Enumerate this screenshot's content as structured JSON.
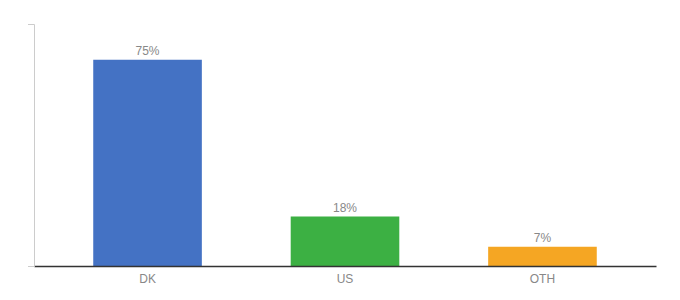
{
  "chart_data": {
    "type": "bar",
    "categories": [
      "DK",
      "US",
      "OTH"
    ],
    "values": [
      75,
      18,
      7
    ],
    "value_labels": [
      "75%",
      "18%",
      "7%"
    ],
    "colors": [
      "#4472c4",
      "#3cb043",
      "#f5a623"
    ],
    "ylim": [
      0,
      88
    ],
    "data_labels": true,
    "tick_labels": "x",
    "grid": false
  }
}
